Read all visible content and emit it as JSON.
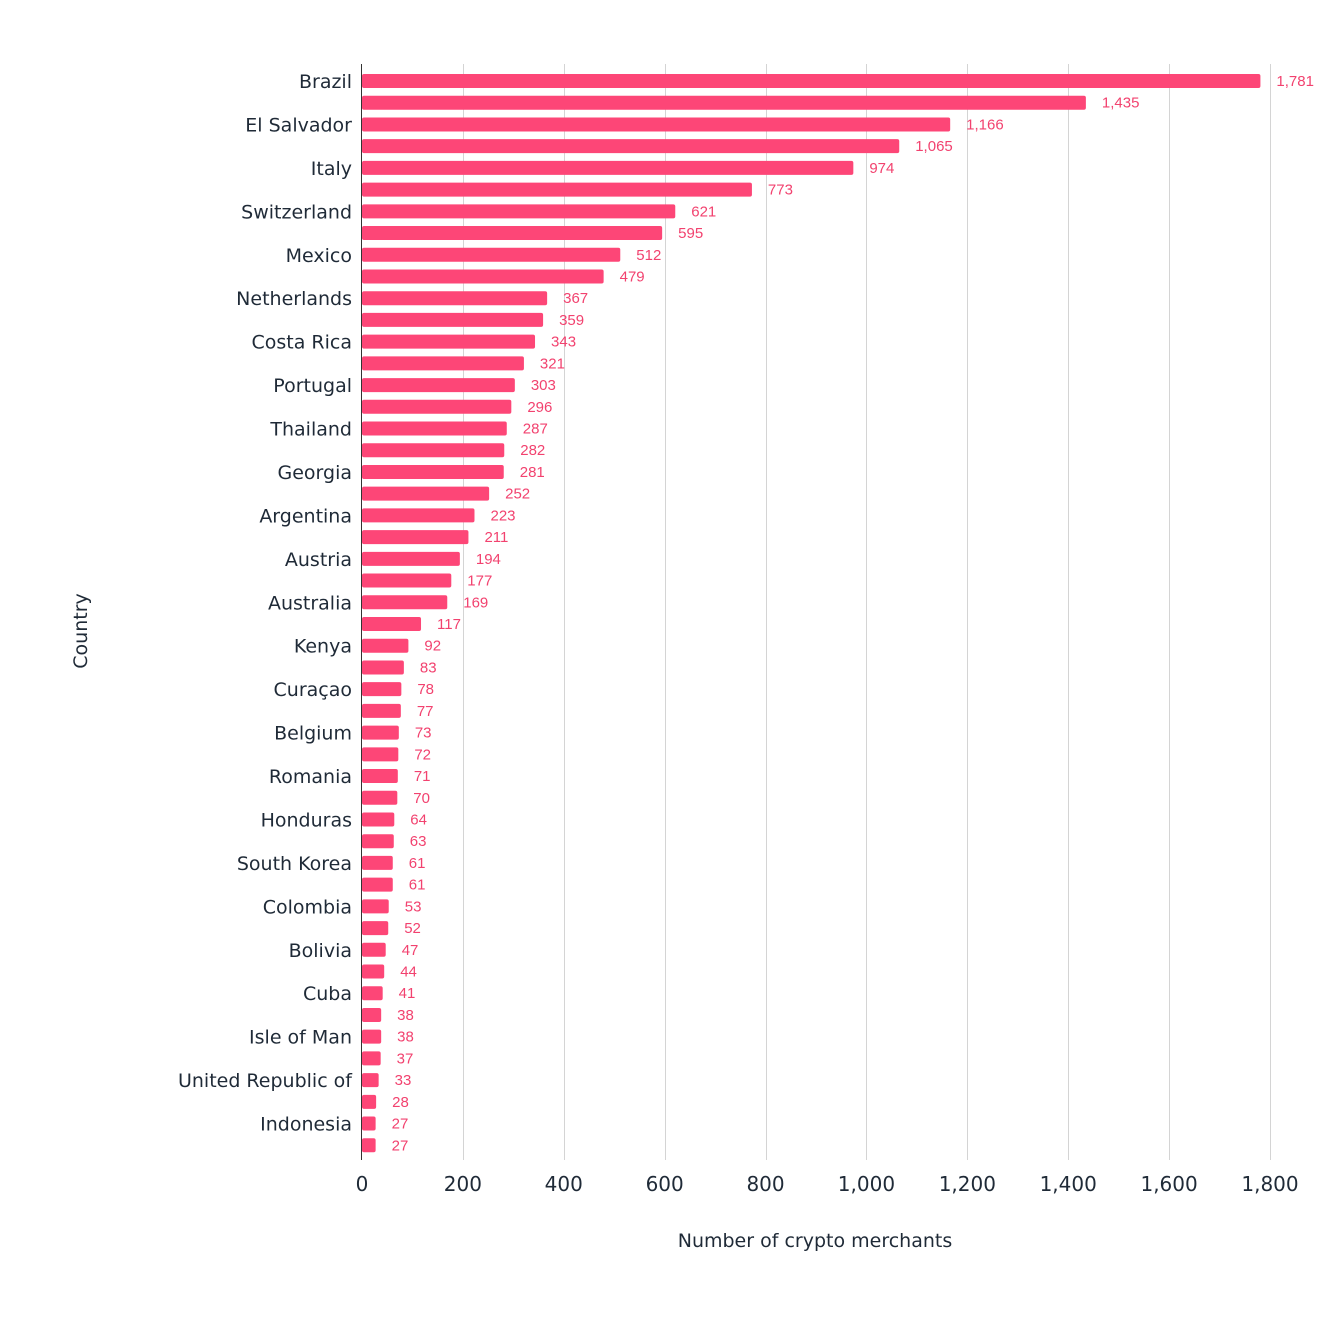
{
  "chart_data": {
    "type": "bar",
    "orientation": "horizontal",
    "xlabel": "Number of crypto merchants",
    "ylabel": "Country",
    "xlim": [
      0,
      1800
    ],
    "xticks": [
      0,
      200,
      400,
      600,
      800,
      1000,
      1200,
      1400,
      1600,
      1800
    ],
    "xtick_labels": [
      "0",
      "200",
      "400",
      "600",
      "800",
      "1,000",
      "1,200",
      "1,400",
      "1,600",
      "1,800"
    ],
    "grid": true,
    "colors": {
      "bar": "#fd4677",
      "value_label": "#f2426f",
      "text": "#1f2a37",
      "grid": "#d4d4d4"
    },
    "categories": [
      "Brazil",
      "",
      "El Salvador",
      "",
      "Italy",
      "",
      "Switzerland",
      "",
      "Mexico",
      "",
      "Netherlands",
      "",
      "Costa Rica",
      "",
      "Portugal",
      "",
      "Thailand",
      "",
      "Georgia",
      "",
      "Argentina",
      "",
      "Austria",
      "",
      "Australia",
      "",
      "Kenya",
      "",
      "Curaçao",
      "",
      "Belgium",
      "",
      "Romania",
      "",
      "Honduras",
      "",
      "South Korea",
      "",
      "Colombia",
      "",
      "Bolivia",
      "",
      "Cuba",
      "",
      "Isle of Man",
      "",
      "United Republic of",
      "",
      "Indonesia",
      ""
    ],
    "values": [
      1781,
      1435,
      1166,
      1065,
      974,
      773,
      621,
      595,
      512,
      479,
      367,
      359,
      343,
      321,
      303,
      296,
      287,
      282,
      281,
      252,
      223,
      211,
      194,
      177,
      169,
      117,
      92,
      83,
      78,
      77,
      73,
      72,
      71,
      70,
      64,
      63,
      61,
      61,
      53,
      52,
      47,
      44,
      41,
      38,
      38,
      37,
      33,
      28,
      27,
      27
    ],
    "value_labels": [
      "1,781",
      "1,435",
      "1,166",
      "1,065",
      "974",
      "773",
      "621",
      "595",
      "512",
      "479",
      "367",
      "359",
      "343",
      "321",
      "303",
      "296",
      "287",
      "282",
      "281",
      "252",
      "223",
      "211",
      "194",
      "177",
      "169",
      "117",
      "92",
      "83",
      "78",
      "77",
      "73",
      "72",
      "71",
      "70",
      "64",
      "63",
      "61",
      "61",
      "53",
      "52",
      "47",
      "44",
      "41",
      "38",
      "38",
      "37",
      "33",
      "28",
      "27",
      "27"
    ]
  }
}
